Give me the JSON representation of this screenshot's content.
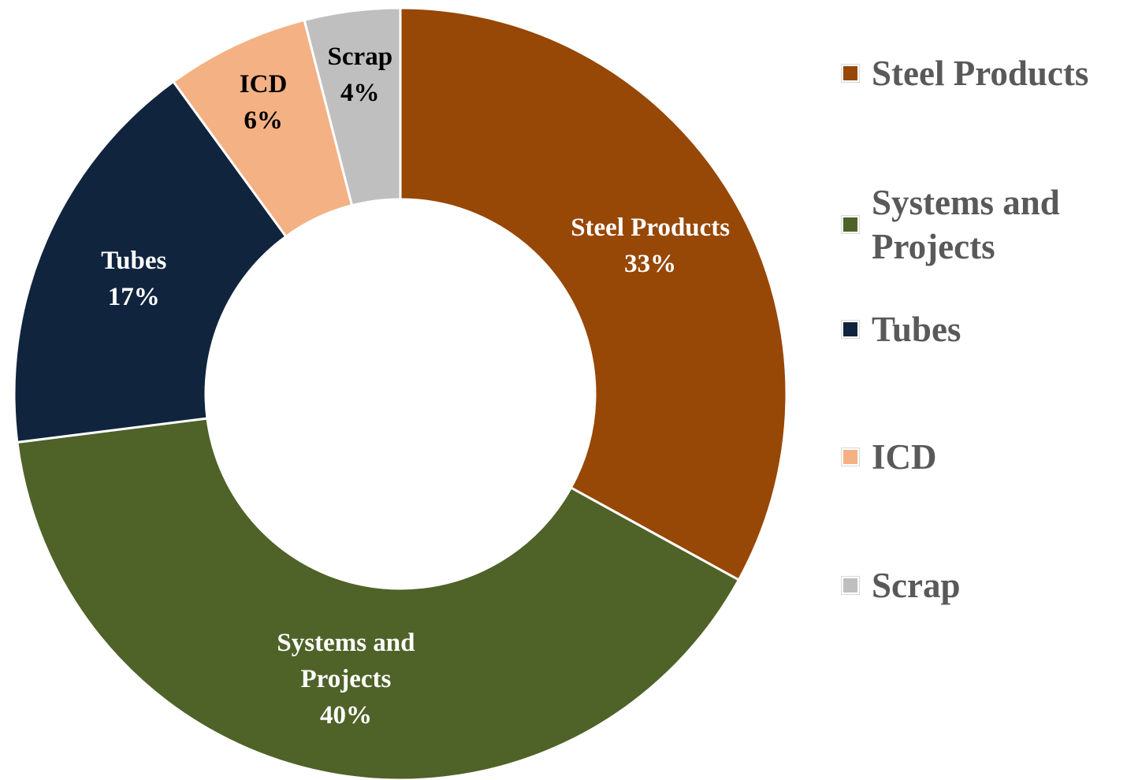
{
  "chart_data": {
    "type": "donut",
    "categories": [
      "Steel Products",
      "Systems and Projects",
      "Tubes",
      "ICD",
      "Scrap"
    ],
    "values": [
      33,
      40,
      17,
      6,
      4
    ],
    "value_labels": [
      "33%",
      "40%",
      "17%",
      "6%",
      "4%"
    ],
    "colors": [
      "#974706",
      "#4f6228",
      "#10243e",
      "#f4b183",
      "#bfbfbf"
    ],
    "legend": "right"
  }
}
